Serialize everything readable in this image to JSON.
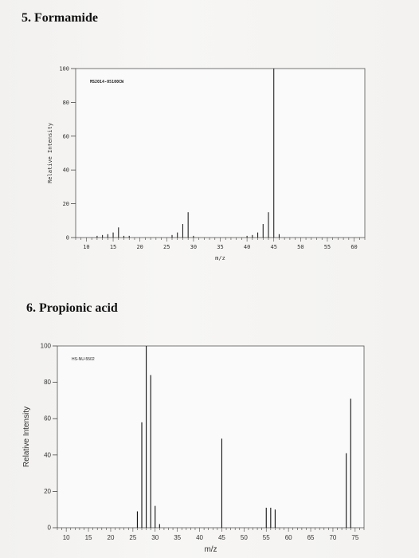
{
  "headings": {
    "formamide": "5. Formamide",
    "propionic": "6. Propionic acid"
  },
  "chart_data": [
    {
      "type": "bar",
      "title": "5. Formamide",
      "code": "MS2014-05100CW",
      "xlabel": "m/z",
      "ylabel": "Relative Intensity",
      "xlim": [
        8,
        62
      ],
      "ylim": [
        0,
        100
      ],
      "xticks": [
        10,
        15,
        20,
        25,
        30,
        35,
        40,
        45,
        50,
        55,
        60
      ],
      "yticks": [
        0,
        20,
        40,
        60,
        80,
        100
      ],
      "grid": false,
      "x": [
        12,
        13,
        14,
        15,
        16,
        17,
        18,
        26,
        27,
        28,
        29,
        30,
        40,
        41,
        42,
        43,
        44,
        45,
        46
      ],
      "values": [
        1,
        1.5,
        2,
        3,
        6,
        1,
        1,
        1.5,
        3,
        8,
        15,
        1,
        1,
        1.5,
        3,
        8,
        15,
        100,
        2
      ]
    },
    {
      "type": "bar",
      "title": "6. Propionic acid",
      "code": "HS-NU-5502",
      "xlabel": "m/z",
      "ylabel": "Relative Intensity",
      "xlim": [
        8,
        77
      ],
      "ylim": [
        0,
        100
      ],
      "xticks": [
        10,
        15,
        20,
        25,
        30,
        35,
        40,
        45,
        50,
        55,
        60,
        65,
        70,
        75
      ],
      "yticks": [
        0,
        20,
        40,
        60,
        80,
        100
      ],
      "grid": false,
      "x": [
        26,
        27,
        28,
        29,
        30,
        31,
        45,
        55,
        56,
        57,
        73,
        74
      ],
      "values": [
        9,
        58,
        100,
        84,
        12,
        2,
        49,
        11,
        11,
        10,
        41,
        71
      ]
    }
  ]
}
